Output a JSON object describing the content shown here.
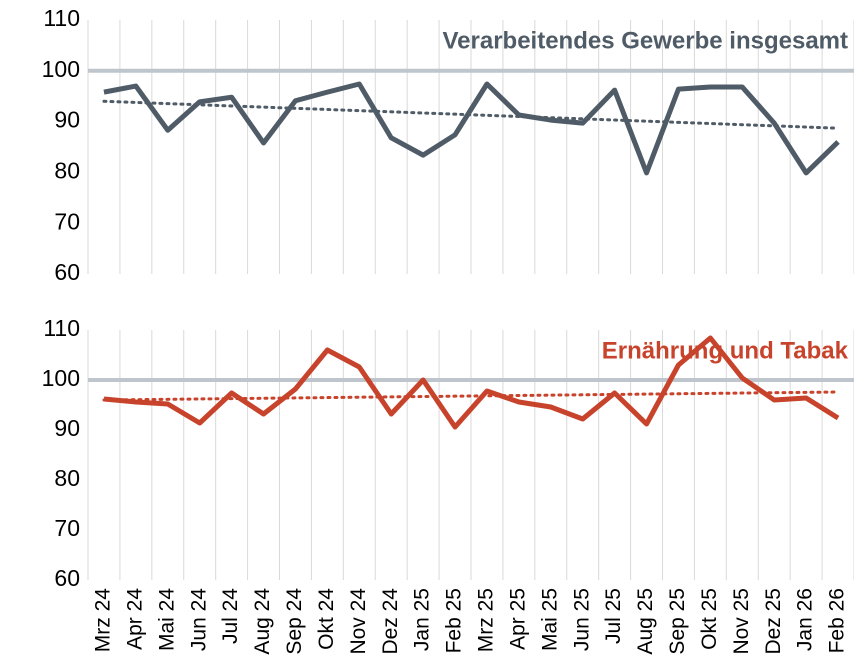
{
  "chart_data": [
    {
      "type": "line",
      "title": "Verarbeitendes Gewerbe insgesamt",
      "color": "#4f5b66",
      "values": [
        95.8,
        97.0,
        88.3,
        93.9,
        94.8,
        85.8,
        94.1,
        95.8,
        97.4,
        86.8,
        83.4,
        87.4,
        97.4,
        91.3,
        90.3,
        89.7,
        96.2,
        79.9,
        96.4,
        96.8,
        96.8,
        89.7,
        79.9,
        86.0
      ],
      "trend": [
        94.0,
        88.7
      ],
      "reference_line": 100,
      "ylim": [
        60,
        110
      ],
      "yticks": [
        60,
        70,
        80,
        90,
        100,
        110
      ]
    },
    {
      "type": "line",
      "title": "Ernährung und Tabak",
      "color": "#c8432b",
      "categories": [
        "Mrz 24",
        "Apr 24",
        "Mai 24",
        "Jun 24",
        "Jul 24",
        "Aug 24",
        "Sep 24",
        "Okt 24",
        "Nov 24",
        "Dez 24",
        "Jan 25",
        "Feb 25",
        "Mrz 25",
        "Apr 25",
        "Mai 25",
        "Jun 25",
        "Jul 25",
        "Aug 25",
        "Sep 25",
        "Okt 25",
        "Nov 25",
        "Dez 25",
        "Jan 26",
        "Feb 26"
      ],
      "values": [
        96.2,
        95.6,
        95.2,
        91.4,
        97.4,
        93.2,
        98.2,
        106.0,
        102.6,
        93.2,
        100.0,
        90.6,
        97.8,
        95.6,
        94.6,
        92.2,
        97.4,
        91.2,
        103.0,
        108.4,
        100.4,
        96.0,
        96.4,
        92.4
      ],
      "trend": [
        96.0,
        97.6
      ],
      "reference_line": 100,
      "ylim": [
        60,
        110
      ],
      "yticks": [
        60,
        70,
        80,
        90,
        100,
        110
      ]
    }
  ]
}
